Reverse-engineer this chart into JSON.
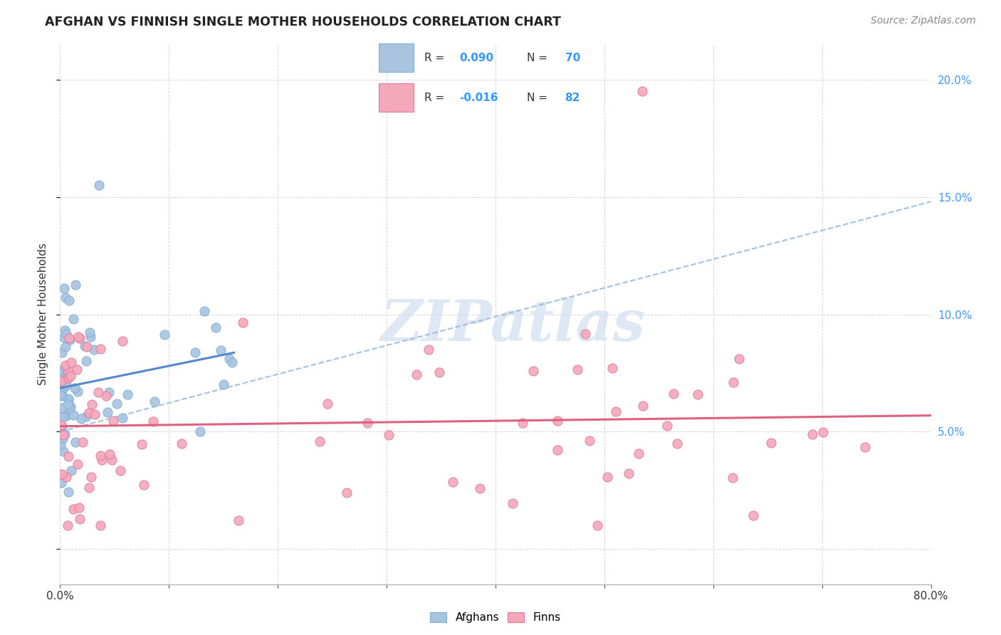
{
  "title": "AFGHAN VS FINNISH SINGLE MOTHER HOUSEHOLDS CORRELATION CHART",
  "source": "Source: ZipAtlas.com",
  "ylabel": "Single Mother Households",
  "xlim": [
    0.0,
    0.8
  ],
  "ylim": [
    -0.015,
    0.215
  ],
  "afghan_color": "#aac4e0",
  "afghan_edge_color": "#7aafd6",
  "finn_color": "#f4a8bc",
  "finn_edge_color": "#e07898",
  "afghan_line_color": "#5588cc",
  "finn_line_color": "#e06080",
  "dashed_line_color": "#99bbdd",
  "right_tick_color": "#4499ff",
  "watermark_color": "#d0dff0",
  "watermark_alpha": 0.7,
  "title_fontsize": 12.5,
  "label_fontsize": 11,
  "tick_fontsize": 11,
  "source_fontsize": 10,
  "background_color": "#ffffff",
  "grid_color": "#cccccc",
  "legend_box_color": "#cccccc",
  "R_afghan": "0.090",
  "N_afghan": "70",
  "R_finn": "-0.016",
  "N_finn": "82",
  "legend_text_color": "#333333",
  "legend_val_color": "#3399ff",
  "bottom_legend_labels": [
    "Afghans",
    "Finns"
  ]
}
